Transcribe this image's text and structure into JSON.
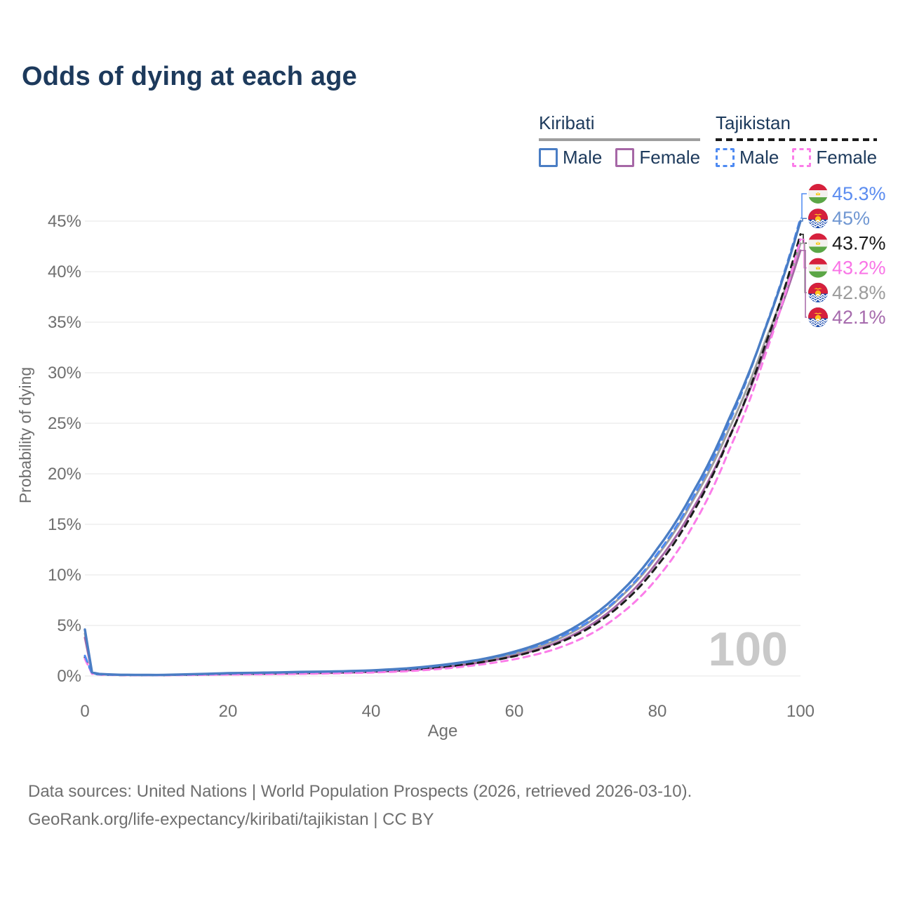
{
  "page": {
    "title": "Odds of dying at each age",
    "watermark_age": "100"
  },
  "legend": {
    "groups": [
      {
        "name": "Kiribati",
        "line_style": "solid",
        "underline_color": "#9e9e9e",
        "items": [
          {
            "label": "Male",
            "color": "#4a7dc4"
          },
          {
            "label": "Female",
            "color": "#a667a6"
          }
        ]
      },
      {
        "name": "Tajikistan",
        "line_style": "dashed",
        "underline_color": "#1c1c1c",
        "items": [
          {
            "label": "Male",
            "color": "#4e8af2"
          },
          {
            "label": "Female",
            "color": "#fb7de9"
          }
        ]
      }
    ]
  },
  "footer": {
    "line1": "Data sources: United Nations | World Population Prospects (2026, retrieved 2026-03-10).",
    "line2": "GeoRank.org/life-expectancy/kiribati/tajikistan | CC BY"
  },
  "chart_data": {
    "type": "line",
    "title": "Odds of dying at each age",
    "xlabel": "Age",
    "ylabel": "Probability of dying",
    "x_ticks": [
      0,
      20,
      40,
      60,
      80,
      100
    ],
    "y_ticks_percent": [
      0,
      5,
      10,
      15,
      20,
      25,
      30,
      35,
      40,
      45
    ],
    "xlim": [
      0,
      100
    ],
    "ylim_percent": [
      0,
      47
    ],
    "grid": "horizontal",
    "legend_position": "top-right",
    "age_cursor_label": "100",
    "ages": [
      0,
      1,
      2,
      5,
      10,
      15,
      20,
      25,
      30,
      35,
      40,
      45,
      50,
      55,
      60,
      65,
      70,
      75,
      80,
      85,
      90,
      95,
      100
    ],
    "series": [
      {
        "id": "ki-male",
        "country": "Kiribati",
        "sex": "Male",
        "style": "solid",
        "color": "#4a7dc4",
        "end_label": "45%",
        "end_label_color": "#7097d2",
        "flag": "ki",
        "values_percent": [
          4.6,
          0.35,
          0.2,
          0.12,
          0.1,
          0.18,
          0.28,
          0.33,
          0.4,
          0.45,
          0.55,
          0.75,
          1.1,
          1.6,
          2.4,
          3.6,
          5.5,
          8.4,
          12.6,
          18.2,
          25.4,
          34.2,
          45.0
        ]
      },
      {
        "id": "ki-female",
        "country": "Kiribati",
        "sex": "Female",
        "style": "solid",
        "color": "#a667a6",
        "end_label": "42.1%",
        "end_label_color": "#a66bad",
        "flag": "ki",
        "values_percent": [
          3.8,
          0.3,
          0.17,
          0.1,
          0.08,
          0.12,
          0.17,
          0.2,
          0.25,
          0.3,
          0.4,
          0.55,
          0.85,
          1.3,
          2.0,
          3.05,
          4.75,
          7.4,
          11.3,
          16.6,
          23.6,
          32.2,
          42.1
        ]
      },
      {
        "id": "ki-both",
        "country": "Kiribati",
        "sex": "Both",
        "style": "solid",
        "color": "#9e9e9e",
        "end_label": "42.8%",
        "end_label_color": "#9b9b9b",
        "flag": "ki",
        "values_percent": [
          4.2,
          0.33,
          0.18,
          0.11,
          0.09,
          0.15,
          0.22,
          0.27,
          0.33,
          0.38,
          0.48,
          0.65,
          1.0,
          1.45,
          2.2,
          3.3,
          5.1,
          7.9,
          11.9,
          17.4,
          24.4,
          33.0,
          42.8
        ]
      },
      {
        "id": "tj-male",
        "country": "Tajikistan",
        "sex": "Male",
        "style": "dashed",
        "color": "#4e8af2",
        "end_label": "45.3%",
        "end_label_color": "#5b8cf0",
        "flag": "tj",
        "values_percent": [
          2.0,
          0.25,
          0.15,
          0.1,
          0.09,
          0.15,
          0.24,
          0.3,
          0.37,
          0.43,
          0.52,
          0.7,
          1.05,
          1.55,
          2.3,
          3.45,
          5.2,
          8.0,
          12.1,
          17.7,
          25.0,
          34.3,
          45.3
        ]
      },
      {
        "id": "tj-female",
        "country": "Tajikistan",
        "sex": "Female",
        "style": "dashed",
        "color": "#fb7de9",
        "end_label": "43.2%",
        "end_label_color": "#f973e6",
        "flag": "tj",
        "values_percent": [
          1.7,
          0.22,
          0.13,
          0.08,
          0.07,
          0.1,
          0.14,
          0.17,
          0.21,
          0.26,
          0.34,
          0.47,
          0.72,
          1.1,
          1.65,
          2.5,
          3.9,
          6.2,
          9.7,
          14.9,
          22.3,
          31.6,
          43.2
        ]
      },
      {
        "id": "tj-both",
        "country": "Tajikistan",
        "sex": "Both",
        "style": "dashed",
        "color": "#1c1c1c",
        "end_label": "43.7%",
        "end_label_color": "#1a1a1a",
        "flag": "tj",
        "values_percent": [
          1.85,
          0.24,
          0.14,
          0.09,
          0.08,
          0.12,
          0.19,
          0.23,
          0.29,
          0.34,
          0.43,
          0.58,
          0.88,
          1.32,
          1.95,
          2.95,
          4.55,
          7.1,
          10.9,
          16.2,
          23.5,
          32.6,
          43.7
        ]
      }
    ],
    "draw_order": [
      "ki-both",
      "ki-female",
      "tj-both",
      "tj-female",
      "tj-male",
      "ki-male"
    ]
  }
}
